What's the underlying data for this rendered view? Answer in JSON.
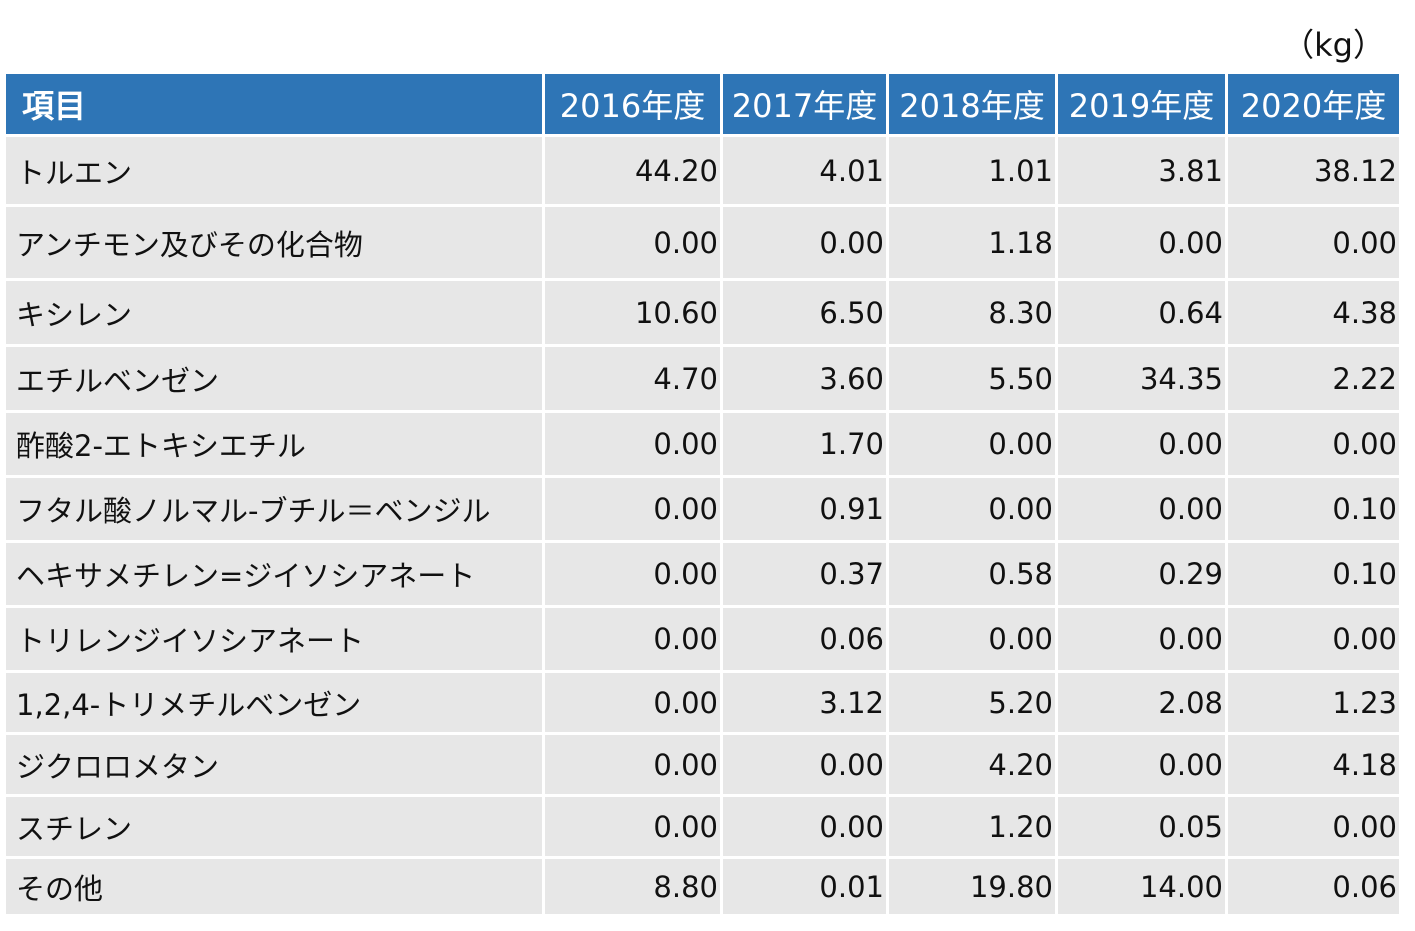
{
  "unit_label": "（kg）",
  "table": {
    "headers": [
      "項目",
      "2016年度",
      "2017年度",
      "2018年度",
      "2019年度",
      "2020年度"
    ],
    "rows": [
      {
        "name": "トルエン",
        "values": [
          "44.20",
          "4.01",
          "1.01",
          "3.81",
          "38.12"
        ]
      },
      {
        "name": "アンチモン及びその化合物",
        "values": [
          "0.00",
          "0.00",
          "1.18",
          "0.00",
          "0.00"
        ]
      },
      {
        "name": "キシレン",
        "values": [
          "10.60",
          "6.50",
          "8.30",
          "0.64",
          "4.38"
        ]
      },
      {
        "name": "エチルベンゼン",
        "values": [
          "4.70",
          "3.60",
          "5.50",
          "34.35",
          "2.22"
        ]
      },
      {
        "name": "酢酸2-エトキシエチル",
        "values": [
          "0.00",
          "1.70",
          "0.00",
          "0.00",
          "0.00"
        ]
      },
      {
        "name": "フタル酸ノルマル-ブチル＝ベンジル",
        "values": [
          "0.00",
          "0.91",
          "0.00",
          "0.00",
          "0.10"
        ]
      },
      {
        "name": "ヘキサメチレン=ジイソシアネート",
        "values": [
          "0.00",
          "0.37",
          "0.58",
          "0.29",
          "0.10"
        ]
      },
      {
        "name": "トリレンジイソシアネート",
        "values": [
          "0.00",
          "0.06",
          "0.00",
          "0.00",
          "0.00"
        ]
      },
      {
        "name": "1,2,4-トリメチルベンゼン",
        "values": [
          "0.00",
          "3.12",
          "5.20",
          "2.08",
          "1.23"
        ]
      },
      {
        "name": "ジクロロメタン",
        "values": [
          "0.00",
          "0.00",
          "4.20",
          "0.00",
          "4.18"
        ]
      },
      {
        "name": "スチレン",
        "values": [
          "0.00",
          "0.00",
          "1.20",
          "0.05",
          "0.00"
        ]
      },
      {
        "name": "その他",
        "values": [
          "8.80",
          "0.01",
          "19.80",
          "14.00",
          "0.06"
        ]
      }
    ]
  }
}
